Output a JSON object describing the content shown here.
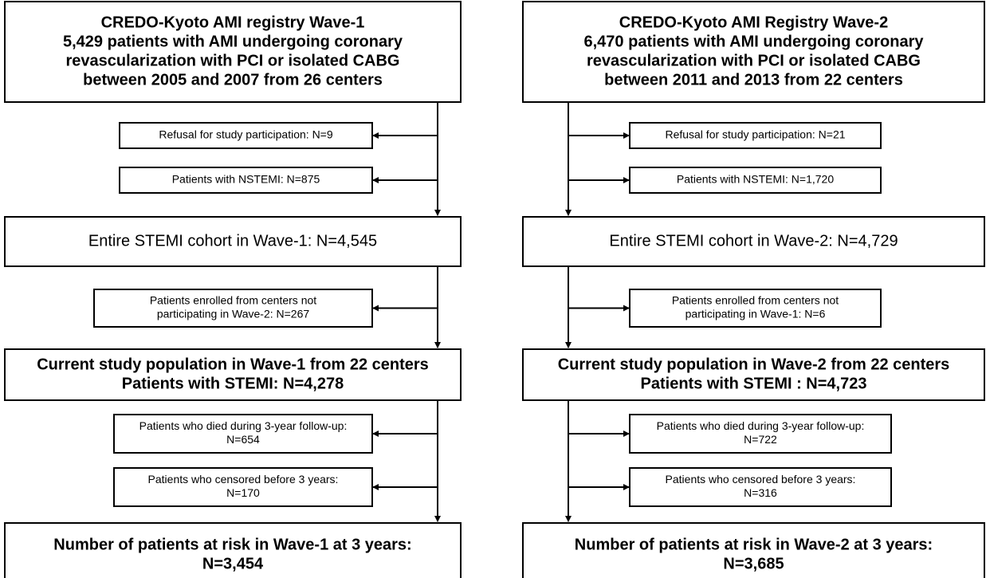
{
  "left": {
    "boxes": [
      {
        "lines": [
          "CREDO-Kyoto AMI registry Wave-1",
          "5,429 patients with AMI undergoing coronary",
          "revascularization with PCI or isolated CABG",
          "between 2005 and 2007 from 26 centers"
        ]
      },
      {
        "lines": [
          "Entire STEMI cohort in Wave-1: N=4,545"
        ]
      },
      {
        "lines": [
          "Current study population in Wave-1 from 22 centers",
          "Patients with STEMI: N=4,278"
        ]
      },
      {
        "lines": [
          "Number of patients at risk in Wave-1 at 3 years:",
          "N=3,454"
        ]
      }
    ],
    "exclusions": [
      {
        "lines": [
          "Refusal for study participation: N=9"
        ]
      },
      {
        "lines": [
          "Patients with NSTEMI: N=875"
        ]
      },
      {
        "lines": [
          "Patients enrolled from centers not",
          "participating in Wave-2: N=267"
        ]
      },
      {
        "lines": [
          "Patients who died during 3-year follow-up:",
          "N=654"
        ]
      },
      {
        "lines": [
          "Patients who censored before 3 years:",
          "N=170"
        ]
      }
    ]
  },
  "right": {
    "boxes": [
      {
        "lines": [
          "CREDO-Kyoto AMI Registry Wave-2",
          "6,470 patients with AMI undergoing coronary",
          "revascularization with PCI or isolated CABG",
          "between 2011 and 2013 from 22 centers"
        ]
      },
      {
        "lines": [
          "Entire STEMI cohort in Wave-2: N=4,729"
        ]
      },
      {
        "lines": [
          "Current study population in Wave-2 from 22 centers",
          "Patients with STEMI : N=4,723"
        ]
      },
      {
        "lines": [
          "Number of patients at risk in Wave-2 at 3 years:",
          "N=3,685"
        ]
      }
    ],
    "exclusions": [
      {
        "lines": [
          "Refusal for study participation: N=21"
        ]
      },
      {
        "lines": [
          "Patients with NSTEMI: N=1,720"
        ]
      },
      {
        "lines": [
          "Patients enrolled from centers not",
          "participating in Wave-1: N=6"
        ]
      },
      {
        "lines": [
          "Patients who died during 3-year follow-up:",
          "N=722"
        ]
      },
      {
        "lines": [
          "Patients who censored before 3 years:",
          "N=316"
        ]
      }
    ]
  }
}
